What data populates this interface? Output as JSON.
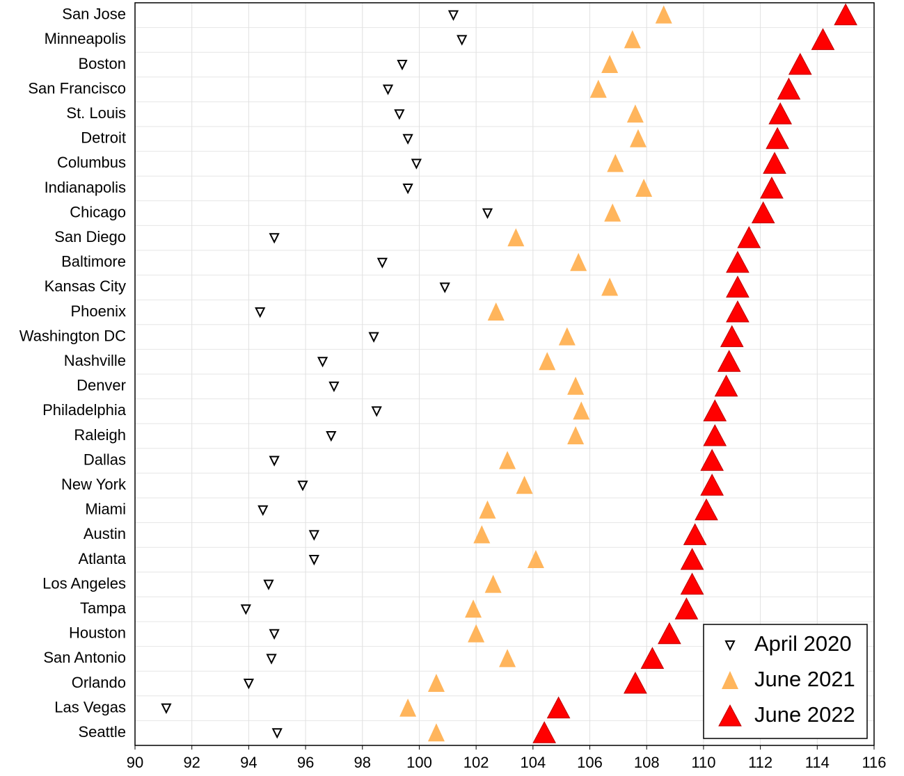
{
  "chart_data": {
    "type": "dot",
    "categories": [
      "San Jose",
      "Minneapolis",
      "Boston",
      "San Francisco",
      "St. Louis",
      "Detroit",
      "Columbus",
      "Indianapolis",
      "Chicago",
      "San Diego",
      "Baltimore",
      "Kansas City",
      "Phoenix",
      "Washington DC",
      "Nashville",
      "Denver",
      "Philadelphia",
      "Raleigh",
      "Dallas",
      "New York",
      "Miami",
      "Austin",
      "Atlanta",
      "Los Angeles",
      "Tampa",
      "Houston",
      "San Antonio",
      "Orlando",
      "Las Vegas",
      "Seattle"
    ],
    "series": [
      {
        "name": "April 2020",
        "color": "#000000",
        "marker": "triangle-down-open",
        "values": [
          101.2,
          101.5,
          99.4,
          98.9,
          99.3,
          99.6,
          99.9,
          99.6,
          102.4,
          94.9,
          98.7,
          100.9,
          94.4,
          98.4,
          96.6,
          97.0,
          98.5,
          96.9,
          94.9,
          95.9,
          94.5,
          96.3,
          96.3,
          94.7,
          93.9,
          94.9,
          94.8,
          94.0,
          91.1,
          95.0
        ]
      },
      {
        "name": "June 2021",
        "color": "#ffb55c",
        "marker": "triangle-up",
        "values": [
          108.6,
          107.5,
          106.7,
          106.3,
          107.6,
          107.7,
          106.9,
          107.9,
          106.8,
          103.4,
          105.6,
          106.7,
          102.7,
          105.2,
          104.5,
          105.5,
          105.7,
          105.5,
          103.1,
          103.7,
          102.4,
          102.2,
          104.1,
          102.6,
          101.9,
          102.0,
          103.1,
          100.6,
          99.6,
          100.6
        ]
      },
      {
        "name": "June 2022",
        "color": "#ff0000",
        "marker": "triangle-up-large",
        "values": [
          115.0,
          114.2,
          113.4,
          113.0,
          112.7,
          112.6,
          112.5,
          112.4,
          112.1,
          111.6,
          111.2,
          111.2,
          111.2,
          111.0,
          110.9,
          110.8,
          110.4,
          110.4,
          110.3,
          110.3,
          110.1,
          109.7,
          109.6,
          109.6,
          109.4,
          108.8,
          108.2,
          107.6,
          104.9,
          104.4
        ]
      }
    ],
    "xlim": [
      90,
      116
    ],
    "xticks": [
      90,
      92,
      94,
      96,
      98,
      100,
      102,
      104,
      106,
      108,
      110,
      112,
      114,
      116
    ],
    "grid": true,
    "legend": "lower right"
  }
}
